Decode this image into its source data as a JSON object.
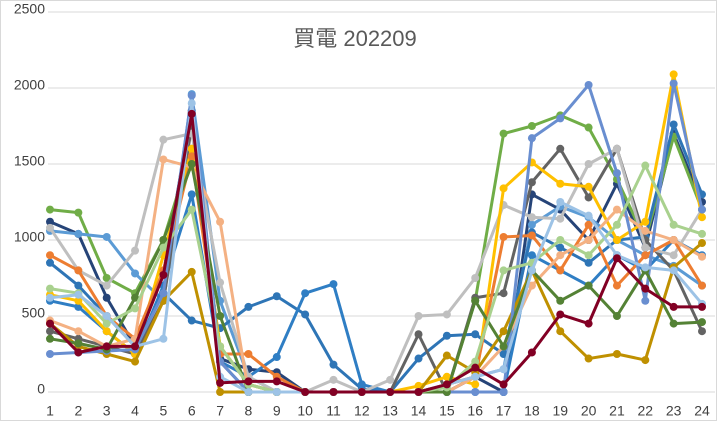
{
  "chart_data": {
    "type": "line",
    "title": "買電 202209",
    "categories": [
      1,
      2,
      3,
      4,
      5,
      6,
      7,
      8,
      9,
      10,
      11,
      12,
      13,
      14,
      15,
      16,
      17,
      18,
      19,
      20,
      21,
      22,
      23,
      24
    ],
    "ylim": [
      0,
      2500
    ],
    "yticks": [
      0,
      500,
      1000,
      1500,
      2000,
      2500
    ],
    "grid": true,
    "series": [
      {
        "color": "#264478",
        "values": [
          1120,
          1040,
          620,
          300,
          780,
          1850,
          220,
          150,
          130,
          0,
          0,
          0,
          0,
          0,
          0,
          100,
          0,
          1300,
          1200,
          1000,
          1370,
          950,
          1700,
          1250
        ]
      },
      {
        "color": "#70ad47",
        "values": [
          1200,
          1180,
          750,
          650,
          1000,
          1600,
          300,
          50,
          0,
          0,
          0,
          0,
          0,
          0,
          0,
          600,
          1700,
          1750,
          1820,
          1740,
          1400,
          1000,
          1680,
          1200
        ]
      },
      {
        "color": "#5b9bd5",
        "values": [
          1060,
          1040,
          1020,
          780,
          600,
          1960,
          600,
          100,
          0,
          0,
          0,
          0,
          0,
          0,
          50,
          100,
          150,
          1100,
          1220,
          1150,
          1000,
          900,
          830,
          700
        ]
      },
      {
        "color": "#2e75b6",
        "values": [
          850,
          700,
          500,
          300,
          650,
          470,
          420,
          560,
          630,
          510,
          180,
          20,
          0,
          220,
          370,
          380,
          250,
          1050,
          950,
          850,
          1000,
          1020,
          1760,
          1300
        ]
      },
      {
        "color": "#2f7ec4",
        "values": [
          600,
          560,
          400,
          250,
          700,
          1300,
          200,
          100,
          230,
          650,
          710,
          50,
          0,
          0,
          0,
          0,
          0,
          900,
          800,
          700,
          900,
          800,
          1000,
          900
        ]
      },
      {
        "color": "#636363",
        "values": [
          400,
          350,
          300,
          250,
          600,
          1750,
          200,
          0,
          0,
          0,
          0,
          0,
          0,
          380,
          0,
          620,
          650,
          1380,
          1600,
          1280,
          1600,
          1000,
          800,
          400
        ]
      },
      {
        "color": "#bfbfbf",
        "values": [
          1080,
          800,
          700,
          930,
          1660,
          1700,
          720,
          100,
          0,
          0,
          80,
          0,
          80,
          500,
          510,
          750,
          1230,
          1150,
          1140,
          1500,
          1600,
          950,
          900,
          1200
        ]
      },
      {
        "color": "#ffc000",
        "values": [
          640,
          600,
          400,
          250,
          900,
          1600,
          300,
          50,
          0,
          0,
          0,
          0,
          0,
          40,
          100,
          50,
          1340,
          1510,
          1370,
          1350,
          1000,
          1120,
          2090,
          1150
        ]
      },
      {
        "color": "#ed7d31",
        "values": [
          900,
          800,
          500,
          350,
          800,
          1550,
          250,
          250,
          100,
          0,
          0,
          0,
          0,
          0,
          50,
          100,
          1020,
          1030,
          800,
          1100,
          700,
          900,
          1000,
          700
        ]
      },
      {
        "color": "#f4b183",
        "values": [
          470,
          400,
          300,
          350,
          1530,
          1480,
          1120,
          0,
          0,
          0,
          0,
          0,
          0,
          0,
          0,
          100,
          300,
          700,
          900,
          1000,
          1200,
          1060,
          1000,
          890
        ]
      },
      {
        "color": "#bf9000",
        "values": [
          450,
          300,
          250,
          200,
          600,
          790,
          0,
          0,
          0,
          0,
          0,
          0,
          0,
          0,
          240,
          130,
          400,
          800,
          400,
          220,
          250,
          210,
          820,
          980
        ]
      },
      {
        "color": "#698ed0",
        "values": [
          250,
          260,
          270,
          280,
          650,
          1950,
          200,
          0,
          0,
          0,
          0,
          0,
          0,
          0,
          0,
          0,
          0,
          1670,
          1800,
          2020,
          1440,
          600,
          2030,
          1200
        ]
      },
      {
        "color": "#548235",
        "values": [
          350,
          320,
          280,
          620,
          1000,
          1500,
          500,
          0,
          0,
          0,
          0,
          0,
          0,
          0,
          0,
          600,
          300,
          800,
          600,
          700,
          500,
          800,
          450,
          460
        ]
      },
      {
        "color": "#a9d18e",
        "values": [
          680,
          650,
          450,
          550,
          950,
          1200,
          300,
          50,
          0,
          0,
          0,
          0,
          0,
          0,
          30,
          200,
          800,
          850,
          1000,
          900,
          1100,
          1490,
          1100,
          1040
        ]
      },
      {
        "color": "#9dc3e6",
        "values": [
          620,
          640,
          500,
          300,
          350,
          1900,
          100,
          0,
          0,
          0,
          0,
          0,
          0,
          0,
          50,
          100,
          150,
          800,
          1250,
          1160,
          900,
          820,
          800,
          580
        ]
      },
      {
        "color": "#820024",
        "values": [
          450,
          260,
          300,
          300,
          770,
          1830,
          60,
          70,
          70,
          0,
          0,
          0,
          0,
          0,
          50,
          160,
          50,
          260,
          510,
          450,
          880,
          680,
          560,
          560
        ]
      }
    ]
  }
}
